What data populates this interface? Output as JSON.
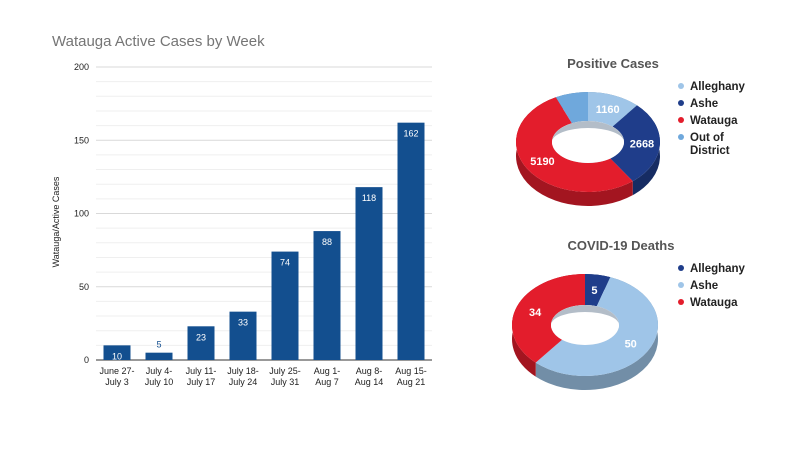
{
  "colors": {
    "bar": "#134f8f",
    "bar_label_inside": "#ffffff",
    "bar_label_outside": "#134f8f",
    "grid": "#e6e6e6",
    "alleghany_light": "#9fc5e8",
    "ashe_dark": "#1f3d8a",
    "watauga_red": "#e31d2c",
    "out_of_district": "#6fa8dc"
  },
  "chart_data": [
    {
      "type": "bar",
      "title": "Watauga Active Cases by Week",
      "xlabel": "",
      "ylabel": "Watauga/Active Cases",
      "ylim": [
        0,
        200
      ],
      "yticks": [
        0,
        50,
        100,
        150,
        200
      ],
      "grid": true,
      "categories": [
        [
          "June 27-",
          "July 3"
        ],
        [
          "July 4-",
          "July 10"
        ],
        [
          "July 11-",
          "July 17"
        ],
        [
          "July 18-",
          "July 24"
        ],
        [
          "July 25-",
          "July 31"
        ],
        [
          "Aug 1-",
          "Aug 7"
        ],
        [
          "Aug 8-",
          "Aug 14"
        ],
        [
          "Aug 15-",
          "Aug 21"
        ]
      ],
      "values": [
        10,
        5,
        23,
        33,
        74,
        88,
        118,
        162
      ],
      "data_labels": [
        "10",
        "5",
        "23",
        "33",
        "74",
        "88",
        "118",
        "162"
      ]
    },
    {
      "type": "pie",
      "style": "3d-donut",
      "title": "Positive Cases",
      "legend_position": "right",
      "slices": [
        {
          "name": "Alleghany",
          "value": 1160,
          "label": "1160",
          "color": "#9fc5e8"
        },
        {
          "name": "Ashe",
          "value": 2668,
          "label": "2668",
          "color": "#1f3d8a"
        },
        {
          "name": "Watauga",
          "value": 5190,
          "label": "5190",
          "color": "#e31d2c"
        },
        {
          "name": "Out of District",
          "value": 717,
          "label": "",
          "color": "#6fa8dc"
        }
      ],
      "legend": [
        {
          "lines": [
            "Alleghany"
          ],
          "color": "#9fc5e8"
        },
        {
          "lines": [
            "Ashe"
          ],
          "color": "#1f3d8a"
        },
        {
          "lines": [
            "Watauga"
          ],
          "color": "#e31d2c"
        },
        {
          "lines": [
            "Out of",
            "District"
          ],
          "color": "#6fa8dc"
        }
      ]
    },
    {
      "type": "pie",
      "style": "3d-donut",
      "title": "COVID-19 Deaths",
      "legend_position": "right",
      "slices": [
        {
          "name": "Alleghany",
          "value": 5,
          "label": "5",
          "color": "#1f3d8a"
        },
        {
          "name": "Ashe",
          "value": 50,
          "label": "50",
          "color": "#9fc5e8"
        },
        {
          "name": "Watauga",
          "value": 34,
          "label": "34",
          "color": "#e31d2c"
        }
      ],
      "legend": [
        {
          "lines": [
            "Alleghany"
          ],
          "color": "#1f3d8a"
        },
        {
          "lines": [
            "Ashe"
          ],
          "color": "#9fc5e8"
        },
        {
          "lines": [
            "Watauga"
          ],
          "color": "#e31d2c"
        }
      ]
    }
  ]
}
